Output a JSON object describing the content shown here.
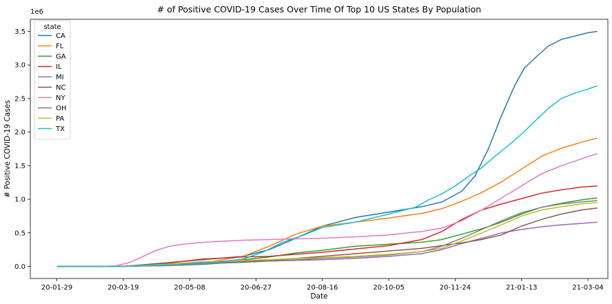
{
  "chart_data": {
    "type": "line",
    "title": "# of Positive COVID-19 Cases Over Time Of Top 10 US States By Population",
    "xlabel": "Date",
    "ylabel": "# Positive COVID-19 Cases",
    "y_offset_text": "1e6",
    "x_tick_labels": [
      "20-01-29",
      "20-03-19",
      "20-05-08",
      "20-06-27",
      "20-08-16",
      "20-10-05",
      "20-11-24",
      "21-01-13",
      "21-03-04"
    ],
    "x_ticks_days": [
      0,
      50,
      100,
      150,
      200,
      250,
      300,
      350,
      400
    ],
    "x_range_days": [
      -20,
      415
    ],
    "ylim": [
      -0.18,
      3.68
    ],
    "y_ticks": [
      0.0,
      0.5,
      1.0,
      1.5,
      2.0,
      2.5,
      3.0,
      3.5
    ],
    "y_tick_labels": [
      "0.0",
      "0.5",
      "1.0",
      "1.5",
      "2.0",
      "2.5",
      "3.0",
      "3.5"
    ],
    "legend": {
      "title": "state",
      "position": "top-left"
    },
    "grid": false,
    "series": [
      {
        "name": "CA",
        "color": "#1f77b4",
        "x": [
          0,
          35,
          50,
          80,
          110,
          140,
          160,
          180,
          200,
          225,
          250,
          275,
          290,
          305,
          315,
          325,
          335,
          345,
          352,
          360,
          370,
          380,
          390,
          400,
          407
        ],
        "y": [
          0,
          0,
          0.001,
          0.05,
          0.1,
          0.15,
          0.25,
          0.42,
          0.6,
          0.73,
          0.81,
          0.89,
          0.96,
          1.12,
          1.35,
          1.75,
          2.25,
          2.7,
          2.95,
          3.1,
          3.28,
          3.38,
          3.43,
          3.48,
          3.5
        ]
      },
      {
        "name": "FL",
        "color": "#ff7f0e",
        "x": [
          0,
          35,
          50,
          80,
          110,
          140,
          160,
          180,
          200,
          225,
          250,
          275,
          290,
          305,
          320,
          335,
          350,
          365,
          380,
          395,
          407
        ],
        "y": [
          0,
          0,
          0.001,
          0.02,
          0.05,
          0.15,
          0.3,
          0.48,
          0.6,
          0.66,
          0.72,
          0.79,
          0.86,
          0.97,
          1.1,
          1.26,
          1.45,
          1.64,
          1.76,
          1.85,
          1.91
        ]
      },
      {
        "name": "GA",
        "color": "#2ca02c",
        "x": [
          0,
          35,
          50,
          80,
          110,
          140,
          160,
          180,
          200,
          225,
          250,
          275,
          290,
          305,
          320,
          335,
          350,
          365,
          380,
          395,
          407
        ],
        "y": [
          0,
          0,
          0.002,
          0.03,
          0.05,
          0.1,
          0.14,
          0.2,
          0.24,
          0.3,
          0.33,
          0.36,
          0.4,
          0.48,
          0.56,
          0.66,
          0.78,
          0.88,
          0.94,
          0.99,
          1.02
        ]
      },
      {
        "name": "IL",
        "color": "#d62728",
        "x": [
          0,
          35,
          50,
          80,
          110,
          140,
          160,
          180,
          200,
          225,
          250,
          275,
          290,
          305,
          320,
          335,
          350,
          365,
          380,
          395,
          407
        ],
        "y": [
          0,
          0,
          0.002,
          0.04,
          0.11,
          0.14,
          0.15,
          0.18,
          0.21,
          0.26,
          0.31,
          0.4,
          0.52,
          0.7,
          0.84,
          0.93,
          1.01,
          1.09,
          1.14,
          1.18,
          1.2
        ]
      },
      {
        "name": "MI",
        "color": "#9467bd",
        "x": [
          35,
          50,
          80,
          110,
          140,
          160,
          180,
          200,
          225,
          250,
          275,
          290,
          305,
          320,
          335,
          350,
          365,
          380,
          395,
          407
        ],
        "y": [
          0,
          0.003,
          0.03,
          0.055,
          0.07,
          0.08,
          0.09,
          0.1,
          0.12,
          0.15,
          0.19,
          0.25,
          0.34,
          0.42,
          0.5,
          0.55,
          0.59,
          0.62,
          0.64,
          0.66
        ]
      },
      {
        "name": "NC",
        "color": "#8c564b",
        "x": [
          35,
          50,
          80,
          110,
          140,
          160,
          180,
          200,
          225,
          250,
          275,
          290,
          305,
          320,
          335,
          350,
          365,
          380,
          395,
          407
        ],
        "y": [
          0,
          0.001,
          0.01,
          0.03,
          0.07,
          0.09,
          0.12,
          0.15,
          0.19,
          0.23,
          0.27,
          0.31,
          0.35,
          0.4,
          0.47,
          0.6,
          0.7,
          0.78,
          0.84,
          0.87
        ]
      },
      {
        "name": "NY",
        "color": "#e377c2",
        "x": [
          35,
          45,
          55,
          65,
          75,
          85,
          95,
          105,
          120,
          140,
          160,
          180,
          200,
          225,
          250,
          275,
          290,
          305,
          320,
          335,
          350,
          365,
          380,
          395,
          407
        ],
        "y": [
          0,
          0.01,
          0.06,
          0.15,
          0.24,
          0.3,
          0.33,
          0.35,
          0.37,
          0.39,
          0.4,
          0.41,
          0.42,
          0.44,
          0.47,
          0.52,
          0.57,
          0.68,
          0.84,
          1.02,
          1.2,
          1.38,
          1.5,
          1.6,
          1.68
        ]
      },
      {
        "name": "OH",
        "color": "#7f7f7f",
        "x": [
          35,
          50,
          80,
          110,
          140,
          160,
          180,
          200,
          225,
          250,
          275,
          290,
          305,
          320,
          335,
          350,
          365,
          380,
          395,
          407
        ],
        "y": [
          0,
          0.001,
          0.015,
          0.04,
          0.06,
          0.08,
          0.1,
          0.12,
          0.14,
          0.17,
          0.22,
          0.3,
          0.42,
          0.55,
          0.68,
          0.8,
          0.88,
          0.93,
          0.96,
          0.98
        ]
      },
      {
        "name": "PA",
        "color": "#bcbd22",
        "x": [
          35,
          50,
          80,
          110,
          140,
          160,
          180,
          200,
          225,
          250,
          275,
          290,
          305,
          320,
          335,
          350,
          365,
          380,
          395,
          407
        ],
        "y": [
          0,
          0.001,
          0.03,
          0.07,
          0.09,
          0.1,
          0.12,
          0.13,
          0.15,
          0.18,
          0.22,
          0.27,
          0.38,
          0.5,
          0.62,
          0.75,
          0.84,
          0.89,
          0.93,
          0.95
        ]
      },
      {
        "name": "TX",
        "color": "#17becf",
        "x": [
          0,
          35,
          50,
          80,
          110,
          140,
          155,
          170,
          185,
          200,
          225,
          250,
          270,
          280,
          290,
          300,
          310,
          320,
          330,
          340,
          350,
          360,
          370,
          380,
          390,
          400,
          407
        ],
        "y": [
          0,
          0,
          0.001,
          0.02,
          0.04,
          0.11,
          0.21,
          0.36,
          0.46,
          0.58,
          0.66,
          0.78,
          0.88,
          0.99,
          1.08,
          1.2,
          1.34,
          1.47,
          1.64,
          1.8,
          1.97,
          2.16,
          2.35,
          2.5,
          2.58,
          2.64,
          2.69
        ]
      }
    ]
  }
}
